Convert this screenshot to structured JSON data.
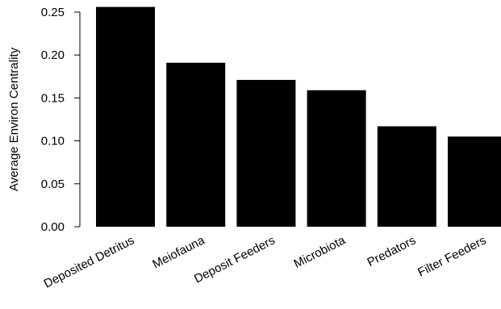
{
  "chart_data": {
    "type": "bar",
    "ylabel": "Average Environ Centrality",
    "xlabel": "",
    "categories": [
      "Deposited Detritus",
      "Meiofauna",
      "Deposit Feeders",
      "Microbiota",
      "Predators",
      "Filter Feeders"
    ],
    "values": [
      0.256,
      0.191,
      0.171,
      0.159,
      0.117,
      0.105
    ],
    "ylim": [
      0,
      0.256
    ],
    "yticks": [
      0.0,
      0.05,
      0.1,
      0.15,
      0.2,
      0.25
    ],
    "ytick_labels": [
      "0.00",
      "0.05",
      "0.10",
      "0.15",
      "0.20",
      "0.25"
    ],
    "bar_color": "#000000",
    "grid": false,
    "legend": "none"
  }
}
